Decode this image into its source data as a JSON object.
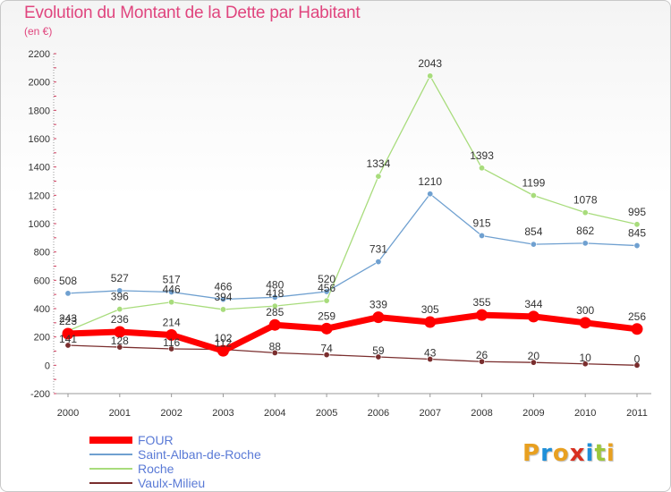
{
  "title": "Evolution du Montant de la Dette par Habitant",
  "subtitle": "(en €)",
  "logo": {
    "text": "Proxiti"
  },
  "chart_data": {
    "type": "line",
    "x": [
      "2000",
      "2001",
      "2002",
      "2003",
      "2004",
      "2005",
      "2006",
      "2007",
      "2008",
      "2009",
      "2010",
      "2011"
    ],
    "ylim": [
      -200,
      2200
    ],
    "yticks": [
      "-200",
      "0",
      "200",
      "400",
      "600",
      "800",
      "1000",
      "1200",
      "1400",
      "1600",
      "1800",
      "2000",
      "2200"
    ],
    "grid": false,
    "legend_position": "bottom-left",
    "series": [
      {
        "name": "FOUR",
        "color": "#ff0000",
        "values": [
          223,
          236,
          214,
          102,
          285,
          259,
          339,
          305,
          355,
          344,
          300,
          256
        ],
        "labels": [
          "223",
          "236",
          "214",
          "102",
          "285",
          "259",
          "339",
          "305",
          "355",
          "344",
          "300",
          "256"
        ]
      },
      {
        "name": "Saint-Alban-de-Roche",
        "color": "#6fa0d0",
        "values": [
          508,
          527,
          517,
          466,
          480,
          520,
          731,
          1210,
          915,
          854,
          862,
          845
        ],
        "labels": [
          "508",
          "527",
          "517",
          "466",
          "480",
          "520",
          "731",
          "1210",
          "915",
          "854",
          "862",
          "845"
        ]
      },
      {
        "name": "Roche",
        "color": "#a8dc7c",
        "values": [
          243,
          396,
          446,
          394,
          418,
          456,
          1334,
          2043,
          1393,
          1199,
          1078,
          995
        ],
        "labels": [
          "243",
          "396",
          "446",
          "394",
          "418",
          "456",
          "1334",
          "2043",
          "1393",
          "1199",
          "1078",
          "995"
        ]
      },
      {
        "name": "Vaulx-Milieu",
        "color": "#7a2e2e",
        "values": [
          141,
          128,
          116,
          112,
          88,
          74,
          59,
          43,
          26,
          20,
          10,
          0
        ],
        "labels": [
          "141",
          "128",
          "116",
          "112",
          "88",
          "74",
          "59",
          "43",
          "26",
          "20",
          "10",
          "0"
        ]
      }
    ]
  }
}
